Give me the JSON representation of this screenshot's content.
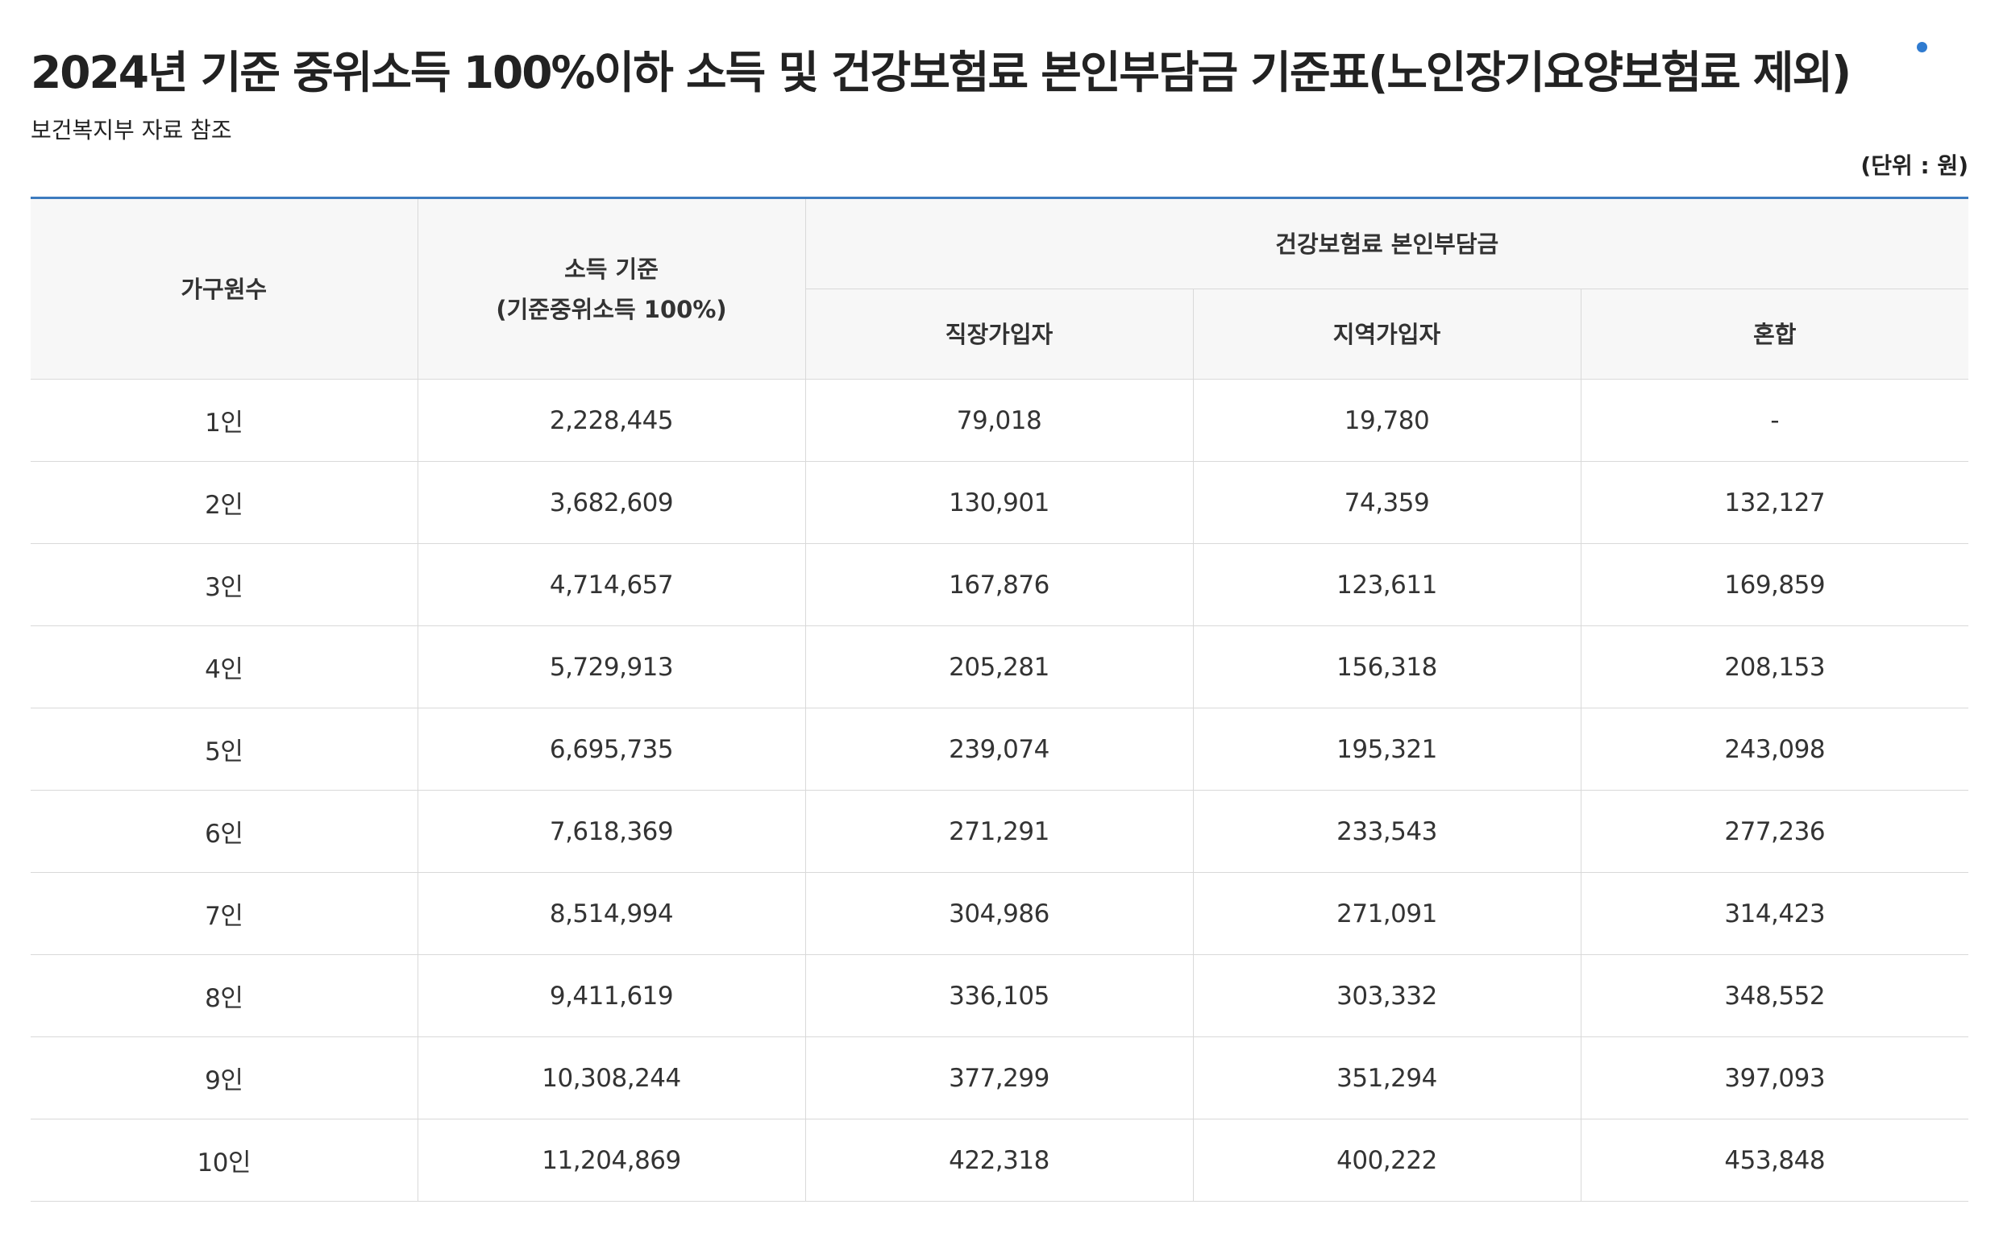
{
  "title": "2024년 기준 중위소득 100%이하 소득 및 건강보험료 본인부담금 기준표(노인장기요양보험료 제외)",
  "subtitle": "보건복지부 자료 참조",
  "unit": "(단위 : 원)",
  "accent_color": "#3d7bbf",
  "table": {
    "headers": {
      "household": "가구원수",
      "income_line1": "소득 기준",
      "income_line2": "(기준중위소득 100%)",
      "premium_group": "건강보험료 본인부담금",
      "employee": "직장가입자",
      "regional": "지역가입자",
      "mixed": "혼합"
    },
    "rows": [
      {
        "household": "1인",
        "income": "2,228,445",
        "employee": "79,018",
        "regional": "19,780",
        "mixed": "-"
      },
      {
        "household": "2인",
        "income": "3,682,609",
        "employee": "130,901",
        "regional": "74,359",
        "mixed": "132,127"
      },
      {
        "household": "3인",
        "income": "4,714,657",
        "employee": "167,876",
        "regional": "123,611",
        "mixed": "169,859"
      },
      {
        "household": "4인",
        "income": "5,729,913",
        "employee": "205,281",
        "regional": "156,318",
        "mixed": "208,153"
      },
      {
        "household": "5인",
        "income": "6,695,735",
        "employee": "239,074",
        "regional": "195,321",
        "mixed": "243,098"
      },
      {
        "household": "6인",
        "income": "7,618,369",
        "employee": "271,291",
        "regional": "233,543",
        "mixed": "277,236"
      },
      {
        "household": "7인",
        "income": "8,514,994",
        "employee": "304,986",
        "regional": "271,091",
        "mixed": "314,423"
      },
      {
        "household": "8인",
        "income": "9,411,619",
        "employee": "336,105",
        "regional": "303,332",
        "mixed": "348,552"
      },
      {
        "household": "9인",
        "income": "10,308,244",
        "employee": "377,299",
        "regional": "351,294",
        "mixed": "397,093"
      },
      {
        "household": "10인",
        "income": "11,204,869",
        "employee": "422,318",
        "regional": "400,222",
        "mixed": "453,848"
      }
    ]
  }
}
